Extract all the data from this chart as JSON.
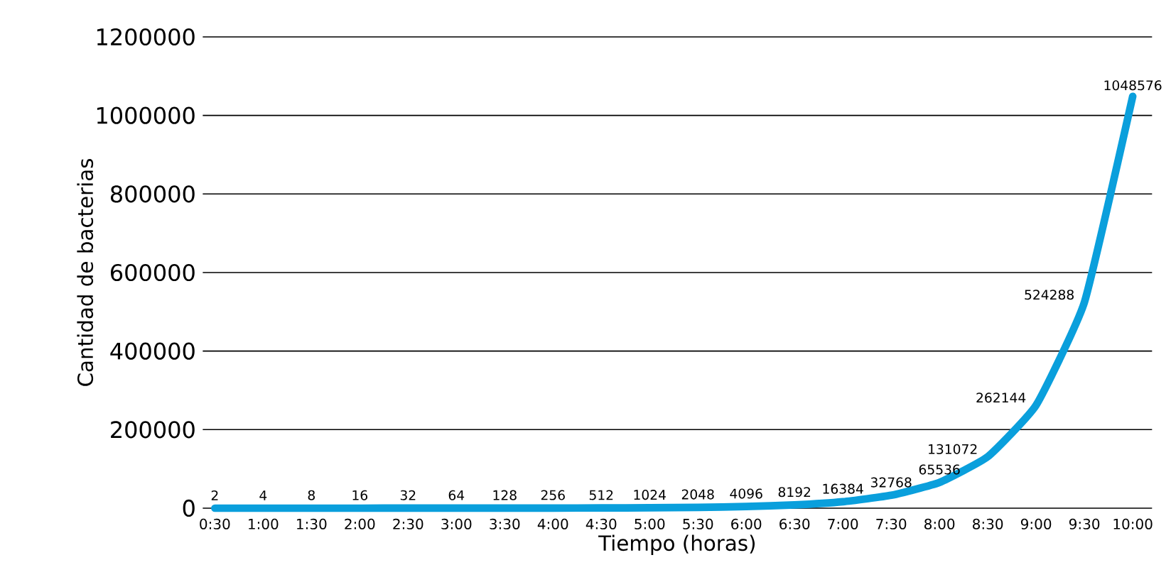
{
  "chart_data": {
    "type": "line",
    "xlabel": "Tiempo (horas)",
    "ylabel": "Cantidad de bacterias",
    "categories": [
      "0:30",
      "1:00",
      "1:30",
      "2:00",
      "2:30",
      "3:00",
      "3:30",
      "4:00",
      "4:30",
      "5:00",
      "5:30",
      "6:00",
      "6:30",
      "7:00",
      "7:30",
      "8:00",
      "8:30",
      "9:00",
      "9:30",
      "10:00"
    ],
    "series": [
      {
        "color": "#0a9fdc",
        "values": [
          2,
          4,
          8,
          16,
          32,
          64,
          128,
          256,
          512,
          1024,
          2048,
          4096,
          8192,
          16384,
          32768,
          65536,
          131072,
          262144,
          524288,
          1048576
        ]
      }
    ],
    "ylim": [
      0,
      1200000
    ],
    "yticks": [
      0,
      200000,
      400000,
      600000,
      800000,
      1000000,
      1200000
    ],
    "grid": "y",
    "data_labels": true
  }
}
